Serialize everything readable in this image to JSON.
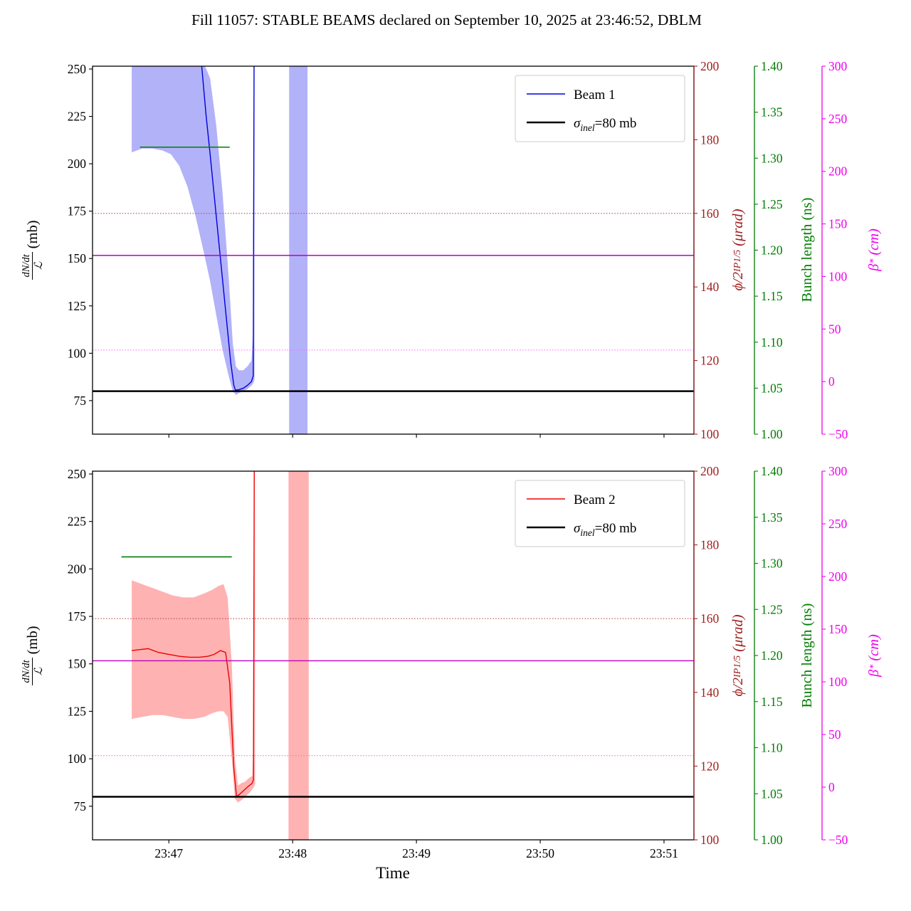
{
  "title": "Fill 11057: STABLE BEAMS declared on September 10, 2025 at 23:46:52, DBLM",
  "chart_data": {
    "type": "line",
    "xlabel": "Time",
    "x": {
      "lim": [
        23,
        314.5
      ],
      "ticks": [
        {
          "t": 60,
          "label": "23:47"
        },
        {
          "t": 120,
          "label": "23:48"
        },
        {
          "t": 180,
          "label": "23:49"
        },
        {
          "t": 240,
          "label": "23:50"
        },
        {
          "t": 300,
          "label": "23:51"
        }
      ]
    },
    "axes": {
      "left": {
        "lim": [
          57.3,
          251.5
        ],
        "color": "#000000",
        "offset": 0,
        "ticks": [
          {
            "v": 75,
            "label": "75"
          },
          {
            "v": 100,
            "label": "100"
          },
          {
            "v": 125,
            "label": "125"
          },
          {
            "v": 150,
            "label": "150"
          },
          {
            "v": 175,
            "label": "175"
          },
          {
            "v": 200,
            "label": "200"
          },
          {
            "v": 225,
            "label": "225"
          },
          {
            "v": 250,
            "label": "250"
          }
        ],
        "label": {
          "num": "dN/dt",
          "den": "ℒ",
          "unit": "(mb)"
        }
      },
      "phi": {
        "lim": [
          100,
          200
        ],
        "color": "#a02020",
        "offset": 0,
        "ticks": [
          {
            "v": 100,
            "label": "100"
          },
          {
            "v": 120,
            "label": "120"
          },
          {
            "v": 140,
            "label": "140"
          },
          {
            "v": 160,
            "label": "160"
          },
          {
            "v": 180,
            "label": "180"
          },
          {
            "v": 200,
            "label": "200"
          }
        ],
        "label": {
          "main": "ϕ/2",
          "sub": "IP1/5",
          "unit": "(μrad)"
        }
      },
      "bunch": {
        "lim": [
          1.0,
          1.4
        ],
        "color": "#007d00",
        "offset": 85,
        "ticks": [
          {
            "v": 1.0,
            "label": "1.00"
          },
          {
            "v": 1.05,
            "label": "1.05"
          },
          {
            "v": 1.1,
            "label": "1.10"
          },
          {
            "v": 1.15,
            "label": "1.15"
          },
          {
            "v": 1.2,
            "label": "1.20"
          },
          {
            "v": 1.25,
            "label": "1.25"
          },
          {
            "v": 1.3,
            "label": "1.30"
          },
          {
            "v": 1.35,
            "label": "1.35"
          },
          {
            "v": 1.4,
            "label": "1.40"
          }
        ],
        "label": {
          "main": "Bunch length (ns)"
        }
      },
      "beta": {
        "lim": [
          -50,
          300
        ],
        "color": "#ee00ee",
        "offset": 180,
        "ticks": [
          {
            "v": -50,
            "label": "−50"
          },
          {
            "v": 0,
            "label": "0"
          },
          {
            "v": 50,
            "label": "50"
          },
          {
            "v": 100,
            "label": "100"
          },
          {
            "v": 150,
            "label": "150"
          },
          {
            "v": 200,
            "label": "200"
          },
          {
            "v": 250,
            "label": "250"
          },
          {
            "v": 300,
            "label": "300"
          }
        ],
        "label": {
          "main": "β",
          "sup": "*",
          "unit": "(cm)"
        }
      }
    },
    "reference_lines": [
      {
        "name": "sigma-inel",
        "axis": "left",
        "value": 80,
        "style": "solid",
        "color": "#000000",
        "width": 2.5
      },
      {
        "name": "phi-target",
        "axis": "phi",
        "value": 160,
        "style": "dotted",
        "color": "#b24444",
        "width": 1.1
      },
      {
        "name": "beta-star",
        "axis": "beta",
        "value": 120,
        "style": "solid",
        "color": "#bb00bb",
        "width": 1.4
      },
      {
        "name": "beta-star-target",
        "axis": "beta",
        "value": 30,
        "style": "dotted",
        "color": "#ff66ff",
        "width": 1.2
      }
    ],
    "panels": [
      {
        "name": "beam1",
        "color": "#0000dd",
        "band_color": "#2222ee",
        "band_opacity": 0.35,
        "legend": {
          "beam_label": "Beam 1",
          "sigma": {
            "pre": "σ",
            "sub": "inel",
            "post": "=80 mb"
          }
        },
        "bunch_segment": {
          "t0": 46,
          "t1": 89.5,
          "value": 1.312
        },
        "vband": [
          118.3,
          127.2
        ],
        "line": {
          "t": [
            75.8,
            78,
            80,
            82,
            84,
            86,
            88,
            90,
            91.5,
            92.3,
            94,
            96,
            98,
            100,
            100.9,
            101.3
          ],
          "y": [
            253,
            226,
            205,
            183,
            161,
            139,
            117,
            95,
            83,
            80.5,
            80.8,
            81.5,
            83,
            85,
            88,
            253
          ]
        },
        "band": {
          "t": [
            42,
            47,
            52,
            57,
            61,
            65,
            69,
            73,
            77,
            80,
            83,
            86,
            89,
            91,
            92.5,
            94,
            96,
            98,
            100,
            100.8,
            101.5
          ],
          "hi": [
            253,
            253,
            253,
            253,
            253,
            253,
            253,
            253,
            253,
            245,
            220,
            185,
            140,
            105,
            93,
            91,
            91,
            93,
            96,
            110,
            253
          ],
          "lo": [
            206,
            208,
            208,
            207,
            205,
            199,
            188,
            172,
            153,
            138,
            120,
            102,
            88,
            80,
            78,
            79,
            80,
            81,
            83,
            84,
            86
          ]
        }
      },
      {
        "name": "beam2",
        "color": "#ee0000",
        "band_color": "#ff2222",
        "band_opacity": 0.35,
        "legend": {
          "beam_label": "Beam 2",
          "sigma": {
            "pre": "σ",
            "sub": "inel",
            "post": "=80 mb"
          }
        },
        "bunch_segment": {
          "t0": 37,
          "t1": 90.5,
          "value": 1.307
        },
        "vband": [
          118.0,
          127.8
        ],
        "line": {
          "t": [
            42,
            46,
            50,
            55,
            60,
            65,
            70,
            75,
            79,
            82,
            85,
            87.5,
            89.5,
            91.5,
            92.8,
            94.5,
            96.5,
            98.5,
            100.3,
            101,
            101.4
          ],
          "y": [
            157,
            157.5,
            158,
            156,
            155,
            154,
            153.5,
            153.5,
            154,
            155,
            157,
            156,
            140,
            95,
            80,
            81.5,
            83.5,
            85.5,
            87,
            89,
            253
          ]
        },
        "band": {
          "t": [
            42,
            47,
            52,
            57,
            62,
            67,
            72,
            77,
            81,
            84,
            86.5,
            88.5,
            90.5,
            92,
            93.5,
            95,
            97,
            99,
            100.5,
            101.2,
            101.8
          ],
          "hi": [
            194,
            192,
            190,
            188,
            186,
            185,
            185,
            187,
            189,
            191,
            192,
            185,
            150,
            100,
            86,
            87,
            88,
            90,
            91,
            120,
            253
          ],
          "lo": [
            121,
            122,
            123,
            123,
            122,
            121,
            121,
            122,
            124,
            125,
            125,
            122,
            100,
            79,
            77,
            78,
            80,
            82,
            84,
            85,
            87
          ]
        }
      }
    ]
  }
}
